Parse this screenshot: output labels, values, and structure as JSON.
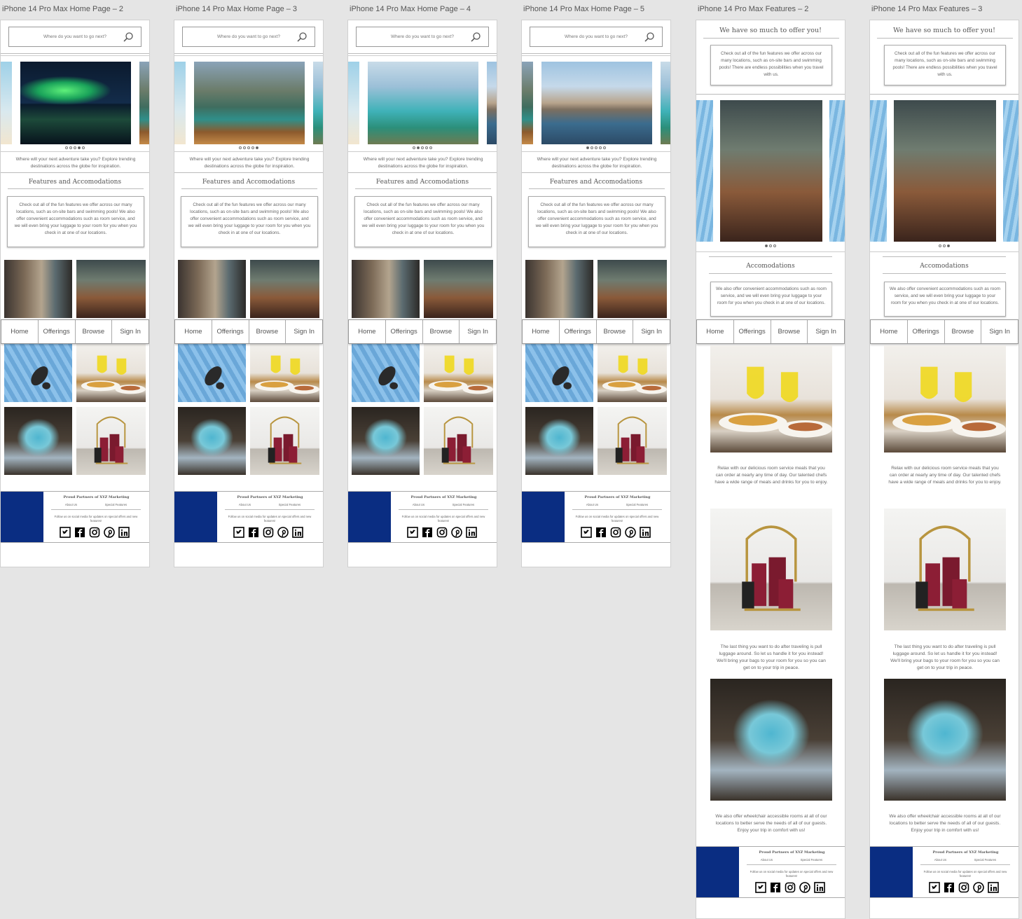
{
  "colors": {
    "footer_blue": "#0a2d82",
    "background": "#e5e5e5"
  },
  "artboards": [
    {
      "title": "iPhone 14 Pro Max Home Page – 2"
    },
    {
      "title": "iPhone 14 Pro Max Home Page – 3"
    },
    {
      "title": "iPhone 14 Pro Max Home Page – 4"
    },
    {
      "title": "iPhone 14 Pro Max Home Page – 5"
    },
    {
      "title": "iPhone 14 Pro Max Features – 2"
    },
    {
      "title": "iPhone 14 Pro Max Features – 3"
    }
  ],
  "home": {
    "search_placeholder": "Where do you want to go next?",
    "caption": "Where will your next adventure take you? Explore trending destinations across the globe for inspiration.",
    "features_heading": "Features and Accomodations",
    "features_text": "Check out all of the fun features we offer across our many locations, such as on-site bars and swimming pools! We also offer convenient accommodations such as room service, and we will even bring your luggage to your room for you when you check in at one of our locations."
  },
  "features": {
    "heading": "We have so much to offer you!",
    "intro": "Check out all of the fun features we offer across our many locations, such as on-site bars and swimming pools! There are endless possibilities when you travel with us.",
    "acc_heading": "Accomodations",
    "acc_text": "We also offer convenient accommodations such as room service, and we will even bring your luggage to your room for you when you check in at one of our locations.",
    "item1": "Relax with our delicious room service meals that you can order at nearly any time of day. Our talented chefs have a wide range of meals and drinks for you to enjoy.",
    "item2": "The last thing you want to do after traveling is pull luggage around. So let us handle it for you instead! We'll bring your bags to your room for you so you can get on to your trip in peace.",
    "item3": "We also offer wheelchair accessible rooms at all of our locations to better serve the needs of all of our guests. Enjoy your trip in comfort with us!"
  },
  "nav": {
    "home": "Home",
    "offerings": "Offerings",
    "browse": "Browse",
    "signin": "Sign In"
  },
  "footer": {
    "title": "Proud Partners of XYZ Marketing",
    "about": "About Us",
    "special": "Special Features",
    "follow": "Follow us on social media for updates on special offers and new features!"
  },
  "icons": [
    "twitter-icon",
    "facebook-icon",
    "instagram-icon",
    "pinterest-icon",
    "linkedin-icon",
    "search-icon"
  ],
  "carousel_active": [
    3,
    4,
    1,
    0
  ],
  "features_carousel_active": [
    0,
    2
  ]
}
